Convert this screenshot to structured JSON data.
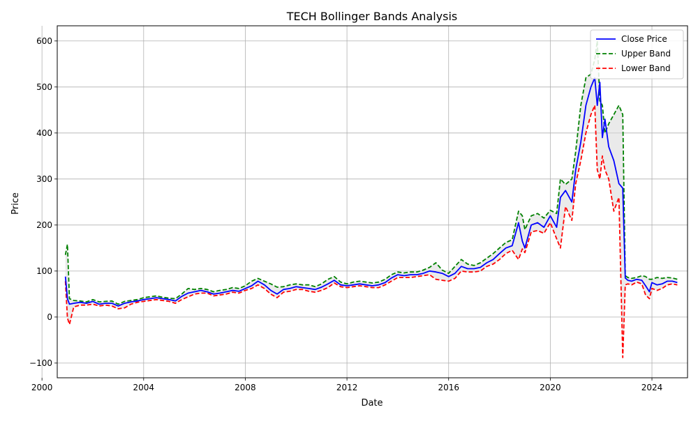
{
  "chart_data": {
    "type": "line",
    "title": "TECH Bollinger Bands Analysis",
    "xlabel": "Date",
    "ylabel": "Price",
    "xlim": [
      2000.6,
      2025.4
    ],
    "ylim": [
      -132,
      633
    ],
    "x_ticks": [
      2000,
      2004,
      2008,
      2012,
      2016,
      2020,
      2024
    ],
    "x_tick_labels": [
      "2000",
      "2004",
      "2008",
      "2012",
      "2016",
      "2020",
      "2024"
    ],
    "y_ticks": [
      -100,
      0,
      100,
      200,
      300,
      400,
      500,
      600
    ],
    "y_tick_labels": [
      "−100",
      "0",
      "100",
      "200",
      "300",
      "400",
      "500",
      "600"
    ],
    "grid": true,
    "legend_position": "top-right",
    "band_fill": "#d9d9d9",
    "x": [
      2000.92,
      2001.0,
      2001.08,
      2001.25,
      2001.5,
      2001.75,
      2002.0,
      2002.25,
      2002.5,
      2002.75,
      2003.0,
      2003.25,
      2003.5,
      2003.75,
      2004.0,
      2004.25,
      2004.5,
      2004.75,
      2005.0,
      2005.25,
      2005.5,
      2005.75,
      2006.0,
      2006.25,
      2006.5,
      2006.75,
      2007.0,
      2007.25,
      2007.5,
      2007.75,
      2008.0,
      2008.25,
      2008.5,
      2008.75,
      2009.0,
      2009.25,
      2009.5,
      2009.75,
      2010.0,
      2010.25,
      2010.5,
      2010.75,
      2011.0,
      2011.25,
      2011.5,
      2011.75,
      2012.0,
      2012.25,
      2012.5,
      2012.75,
      2013.0,
      2013.25,
      2013.5,
      2013.75,
      2014.0,
      2014.25,
      2014.5,
      2014.75,
      2015.0,
      2015.25,
      2015.5,
      2015.75,
      2016.0,
      2016.25,
      2016.5,
      2016.75,
      2017.0,
      2017.25,
      2017.5,
      2017.75,
      2018.0,
      2018.25,
      2018.5,
      2018.75,
      2018.9,
      2019.0,
      2019.25,
      2019.5,
      2019.75,
      2020.0,
      2020.25,
      2020.4,
      2020.6,
      2020.85,
      2021.0,
      2021.2,
      2021.4,
      2021.6,
      2021.75,
      2021.85,
      2021.95,
      2022.05,
      2022.15,
      2022.3,
      2022.5,
      2022.7,
      2022.85,
      2022.95,
      2023.05,
      2023.2,
      2023.4,
      2023.6,
      2023.75,
      2023.9,
      2024.0,
      2024.2,
      2024.4,
      2024.6,
      2024.8,
      2025.0
    ],
    "series": [
      {
        "name": "Close Price",
        "color": "#0000ff",
        "dash": "solid",
        "values": [
          88,
          40,
          28,
          30,
          32,
          30,
          34,
          28,
          30,
          30,
          24,
          30,
          33,
          35,
          38,
          40,
          42,
          40,
          38,
          35,
          45,
          52,
          55,
          58,
          55,
          50,
          52,
          55,
          58,
          56,
          62,
          68,
          78,
          70,
          58,
          50,
          60,
          62,
          66,
          64,
          62,
          60,
          65,
          72,
          80,
          70,
          68,
          70,
          72,
          70,
          68,
          70,
          75,
          85,
          92,
          90,
          92,
          92,
          95,
          100,
          98,
          95,
          88,
          95,
          110,
          105,
          105,
          108,
          118,
          125,
          138,
          150,
          155,
          205,
          165,
          150,
          200,
          205,
          195,
          220,
          195,
          260,
          275,
          250,
          320,
          380,
          460,
          500,
          520,
          460,
          510,
          390,
          430,
          370,
          340,
          290,
          280,
          85,
          80,
          78,
          82,
          80,
          68,
          55,
          75,
          70,
          72,
          78,
          78,
          75
        ]
      },
      {
        "name": "Upper Band",
        "color": "#008000",
        "dash": "dashed",
        "values": [
          135,
          158,
          40,
          36,
          35,
          33,
          38,
          33,
          34,
          35,
          28,
          34,
          36,
          38,
          42,
          44,
          46,
          43,
          41,
          40,
          50,
          62,
          60,
          62,
          60,
          55,
          58,
          60,
          64,
          62,
          68,
          78,
          84,
          78,
          72,
          65,
          66,
          70,
          72,
          70,
          70,
          66,
          72,
          82,
          88,
          76,
          72,
          76,
          78,
          76,
          74,
          76,
          82,
          92,
          98,
          96,
          98,
          98,
          102,
          108,
          118,
          102,
          95,
          110,
          125,
          115,
          112,
          118,
          128,
          138,
          150,
          162,
          168,
          230,
          220,
          190,
          220,
          225,
          215,
          232,
          225,
          300,
          288,
          300,
          360,
          460,
          520,
          528,
          560,
          600,
          470,
          460,
          400,
          420,
          440,
          460,
          440,
          90,
          86,
          84,
          86,
          90,
          88,
          82,
          82,
          86,
          84,
          86,
          85,
          82
        ]
      },
      {
        "name": "Lower Band",
        "color": "#ff0000",
        "dash": "dashed",
        "values": [
          78,
          -2,
          -16,
          22,
          26,
          26,
          28,
          24,
          26,
          24,
          18,
          20,
          28,
          32,
          34,
          36,
          38,
          36,
          34,
          30,
          38,
          44,
          50,
          52,
          52,
          46,
          48,
          50,
          54,
          52,
          58,
          62,
          70,
          62,
          50,
          42,
          54,
          56,
          60,
          60,
          56,
          54,
          58,
          64,
          74,
          66,
          64,
          66,
          68,
          66,
          64,
          64,
          70,
          78,
          86,
          86,
          86,
          88,
          90,
          92,
          82,
          80,
          78,
          84,
          100,
          98,
          98,
          100,
          110,
          115,
          125,
          138,
          145,
          125,
          148,
          140,
          185,
          188,
          182,
          205,
          170,
          150,
          240,
          210,
          290,
          340,
          400,
          440,
          460,
          320,
          300,
          350,
          320,
          300,
          230,
          260,
          -88,
          70,
          72,
          70,
          76,
          72,
          48,
          40,
          62,
          58,
          62,
          70,
          72,
          70
        ]
      }
    ]
  }
}
